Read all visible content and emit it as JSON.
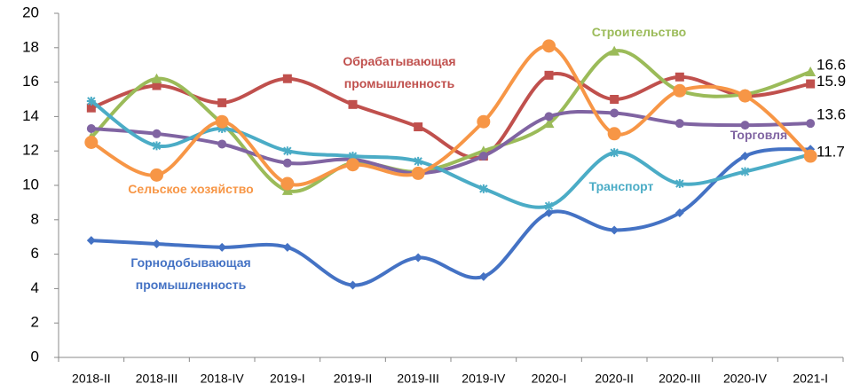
{
  "chart_data": {
    "type": "line",
    "categories": [
      "2018-II",
      "2018-III",
      "2018-IV",
      "2019-I",
      "2019-II",
      "2019-III",
      "2019-IV",
      "2020-I",
      "2020-II",
      "2020-III",
      "2020-IV",
      "2021-I"
    ],
    "ylim": [
      0,
      20
    ],
    "yticks": [
      0,
      2,
      4,
      6,
      8,
      10,
      12,
      14,
      16,
      18,
      20
    ],
    "smooth": true,
    "series": [
      {
        "name": "Горнодобывающая промышленность",
        "color": "#4472c4",
        "marker": "diamond",
        "show_last_label": false,
        "values": [
          6.8,
          6.6,
          6.4,
          6.4,
          4.2,
          5.8,
          4.7,
          8.4,
          7.4,
          8.4,
          11.7,
          12.1
        ]
      },
      {
        "name": "Обрабатывающая промышленность",
        "color": "#c0504d",
        "marker": "square",
        "show_last_label": true,
        "values": [
          14.5,
          15.8,
          14.8,
          16.2,
          14.7,
          13.4,
          11.7,
          16.4,
          15.0,
          16.3,
          15.2,
          15.9
        ]
      },
      {
        "name": "Строительство",
        "color": "#9bbb59",
        "marker": "triangle",
        "show_last_label": true,
        "values": [
          12.8,
          16.2,
          13.6,
          9.7,
          11.3,
          10.8,
          12.0,
          13.6,
          17.8,
          15.5,
          15.3,
          16.6
        ]
      },
      {
        "name": "Торговля",
        "color": "#8064a2",
        "marker": "circle",
        "show_last_label": true,
        "values": [
          13.3,
          13.0,
          12.4,
          11.3,
          11.5,
          10.7,
          11.7,
          14.0,
          14.2,
          13.6,
          13.5,
          13.6
        ]
      },
      {
        "name": "Транспорт",
        "color": "#4bacc6",
        "marker": "star",
        "show_last_label": false,
        "values": [
          14.9,
          12.3,
          13.3,
          12.0,
          11.7,
          11.4,
          9.8,
          8.8,
          11.9,
          10.1,
          10.8,
          11.8
        ]
      },
      {
        "name": "Сельское хозяйство",
        "color": "#f79646",
        "marker": "bigcircle",
        "show_last_label": true,
        "values": [
          12.5,
          10.6,
          13.7,
          10.1,
          11.2,
          10.7,
          13.7,
          18.1,
          13.0,
          15.5,
          15.2,
          11.7
        ]
      }
    ]
  }
}
